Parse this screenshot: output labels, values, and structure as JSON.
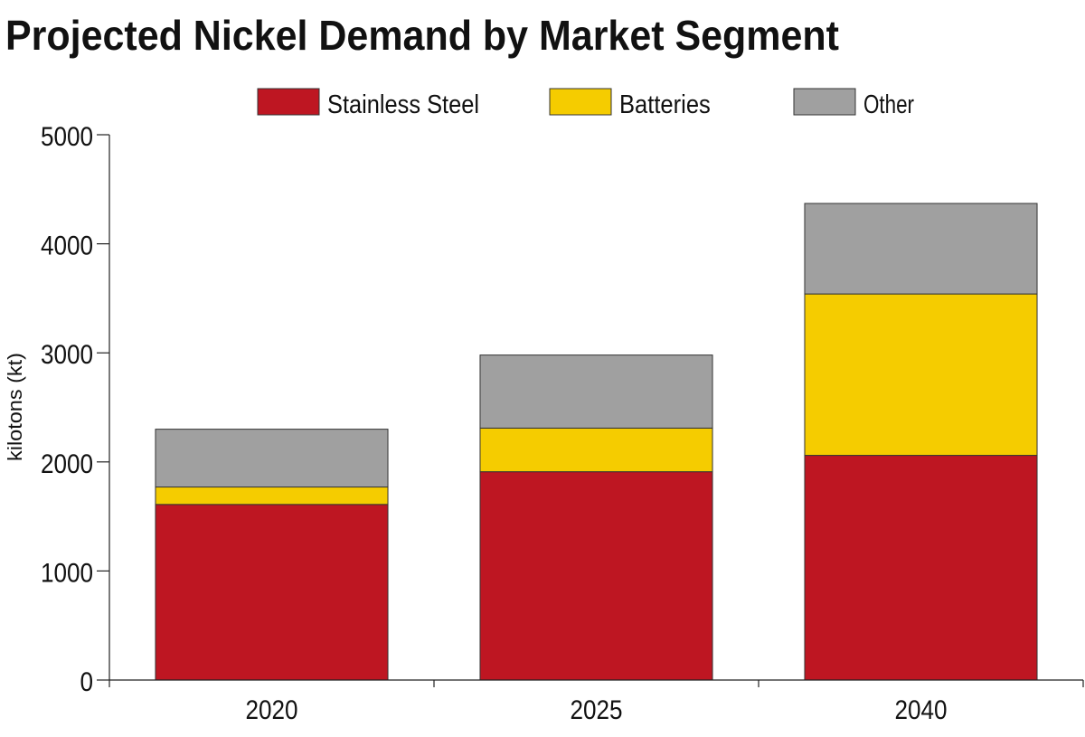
{
  "chart_data": {
    "type": "bar",
    "stacked": true,
    "title": "Projected Nickel Demand by Market Segment",
    "xlabel": "",
    "ylabel": "kilotons (kt)",
    "ylim": [
      0,
      5000
    ],
    "yticks": [
      0,
      1000,
      2000,
      3000,
      4000,
      5000
    ],
    "categories": [
      "2020",
      "2025",
      "2040"
    ],
    "series": [
      {
        "name": "Stainless Steel",
        "color": "#be1622",
        "values": [
          1610,
          1910,
          2060
        ]
      },
      {
        "name": "Batteries",
        "color": "#f5cc00",
        "values": [
          160,
          400,
          1480
        ]
      },
      {
        "name": "Other",
        "color": "#a0a0a0",
        "values": [
          530,
          670,
          830
        ]
      }
    ],
    "legend": "top-center",
    "grid": false
  }
}
